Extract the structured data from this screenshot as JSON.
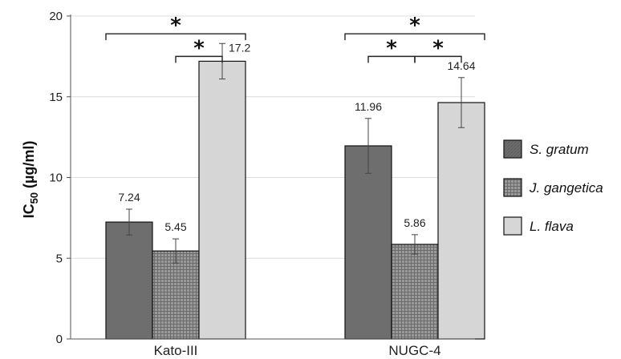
{
  "chart_data": {
    "type": "bar",
    "ylabel_main": "IC",
    "ylabel_sub": "50",
    "ylabel_unit": " (µg/ml)",
    "xlabel": "",
    "ylim": [
      0,
      20
    ],
    "yticks": [
      0,
      5,
      10,
      15,
      20
    ],
    "grid": true,
    "legend_position": "right",
    "categories": [
      "Kato-III",
      "NUGC-4"
    ],
    "series": [
      {
        "name": "S. gratum",
        "values": [
          7.24,
          11.96
        ],
        "errors": [
          0.8,
          1.7
        ],
        "labels": [
          "7.24",
          "11.96"
        ],
        "color": "#707070",
        "pattern": "diagonal"
      },
      {
        "name": "J. gangetica",
        "values": [
          5.45,
          5.86
        ],
        "errors": [
          0.75,
          0.6
        ],
        "labels": [
          "5.45",
          "5.86"
        ],
        "color": "#8a8a8a",
        "pattern": "grid"
      },
      {
        "name": "L. flava",
        "values": [
          17.2,
          14.64
        ],
        "errors": [
          1.1,
          1.55
        ],
        "labels": [
          "17.2",
          "14.64"
        ],
        "color": "#d6d6d6",
        "pattern": "dots"
      }
    ],
    "significance": [
      {
        "category": 0,
        "from": 0,
        "to": 2,
        "level": 18.9,
        "label": "*"
      },
      {
        "category": 0,
        "from": 1,
        "to": 2,
        "level": 17.5,
        "label": "*"
      },
      {
        "category": 1,
        "from": 0,
        "to": 2,
        "level": 18.9,
        "label": "*"
      },
      {
        "category": 1,
        "from": 0,
        "to": 1,
        "level": 17.5,
        "label": "*"
      },
      {
        "category": 1,
        "from": 1,
        "to": 2,
        "level": 17.5,
        "label": "*"
      }
    ]
  }
}
